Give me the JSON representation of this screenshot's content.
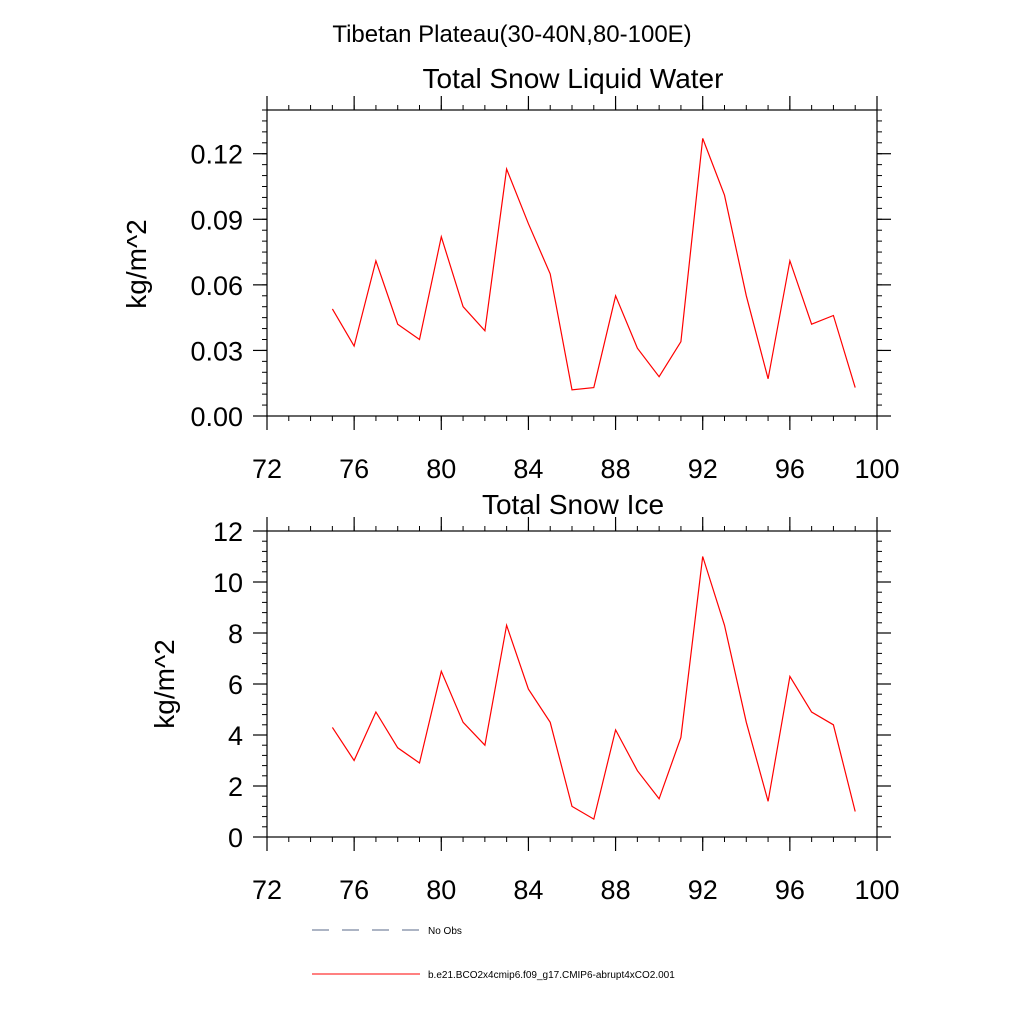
{
  "figure_title": "Tibetan Plateau(30-40N,80-100E)",
  "colors": {
    "series": "#ff0000",
    "obs": "#5a6a8a",
    "axis": "#000000",
    "background": "#ffffff"
  },
  "chart_data": [
    {
      "type": "line",
      "title": "Total Snow Liquid Water",
      "xlabel": "",
      "ylabel": "kg/m^2",
      "xlim": [
        72,
        100
      ],
      "ylim": [
        0,
        0.14
      ],
      "xticks": [
        72,
        76,
        80,
        84,
        88,
        92,
        96,
        100
      ],
      "xtick_labels": [
        "72",
        "76",
        "80",
        "84",
        "88",
        "92",
        "96",
        "100"
      ],
      "yticks": [
        0,
        0.03,
        0.06,
        0.09,
        0.12
      ],
      "ytick_labels": [
        "0.00",
        "0.03",
        "0.06",
        "0.09",
        "0.12"
      ],
      "grid": false,
      "series": [
        {
          "name": "b.e21.BCO2x4cmip6.f09_g17.CMIP6-abrupt4xCO2.001",
          "x": [
            75,
            76,
            77,
            78,
            79,
            80,
            81,
            82,
            83,
            84,
            85,
            86,
            87,
            88,
            89,
            90,
            91,
            92,
            93,
            94,
            95,
            96,
            97,
            98,
            99
          ],
          "values": [
            0.049,
            0.032,
            0.071,
            0.042,
            0.035,
            0.082,
            0.05,
            0.039,
            0.113,
            0.088,
            0.065,
            0.012,
            0.013,
            0.055,
            0.031,
            0.018,
            0.034,
            0.127,
            0.101,
            0.055,
            0.017,
            0.071,
            0.042,
            0.046,
            0.013
          ]
        }
      ]
    },
    {
      "type": "line",
      "title": "Total Snow Ice",
      "xlabel": "",
      "ylabel": "kg/m^2",
      "xlim": [
        72,
        100
      ],
      "ylim": [
        0,
        12
      ],
      "xticks": [
        72,
        76,
        80,
        84,
        88,
        92,
        96,
        100
      ],
      "xtick_labels": [
        "72",
        "76",
        "80",
        "84",
        "88",
        "92",
        "96",
        "100"
      ],
      "yticks": [
        0,
        2,
        4,
        6,
        8,
        10,
        12
      ],
      "ytick_labels": [
        "0",
        "2",
        "4",
        "6",
        "8",
        "10",
        "12"
      ],
      "grid": false,
      "series": [
        {
          "name": "b.e21.BCO2x4cmip6.f09_g17.CMIP6-abrupt4xCO2.001",
          "x": [
            75,
            76,
            77,
            78,
            79,
            80,
            81,
            82,
            83,
            84,
            85,
            86,
            87,
            88,
            89,
            90,
            91,
            92,
            93,
            94,
            95,
            96,
            97,
            98,
            99
          ],
          "values": [
            4.3,
            3.0,
            4.9,
            3.5,
            2.9,
            6.5,
            4.5,
            3.6,
            8.3,
            5.8,
            4.5,
            1.2,
            0.7,
            4.2,
            2.6,
            1.5,
            3.9,
            11.0,
            8.3,
            4.5,
            1.4,
            6.3,
            4.9,
            4.4,
            1.0
          ]
        }
      ]
    }
  ],
  "legend": {
    "placement": "bottom-left",
    "items": [
      {
        "label": "No Obs",
        "style": "dashed"
      },
      {
        "label": "b.e21.BCO2x4cmip6.f09_g17.CMIP6-abrupt4xCO2.001",
        "style": "solid"
      }
    ]
  }
}
